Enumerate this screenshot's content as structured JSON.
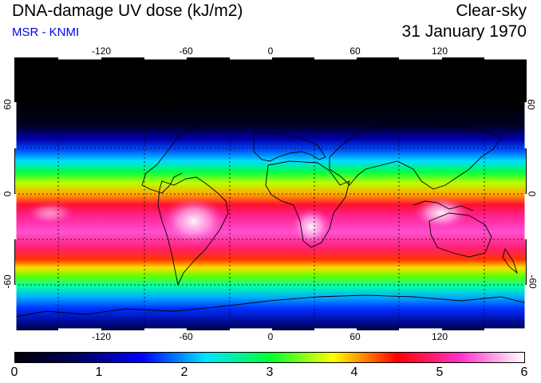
{
  "header": {
    "title": "DNA-damage UV dose (kJ/m2)",
    "subtitle": "MSR - KNMI",
    "condition": "Clear-sky",
    "date": "31 January 1970"
  },
  "map": {
    "lon_ticks": [
      "-120",
      "-60",
      "0",
      "60",
      "120"
    ],
    "lat_ticks_left": [
      "60",
      "0",
      "-60"
    ],
    "lat_ticks_right": [
      "60",
      "0",
      "-60"
    ]
  },
  "colorbar": {
    "labels": [
      "0",
      "1",
      "2",
      "3",
      "4",
      "5",
      "6"
    ],
    "stops": [
      "#000000",
      "#000066",
      "#0000ff",
      "#00e5ff",
      "#00ff33",
      "#ffff00",
      "#ff0000",
      "#ff33cc",
      "#ffffff"
    ]
  }
}
